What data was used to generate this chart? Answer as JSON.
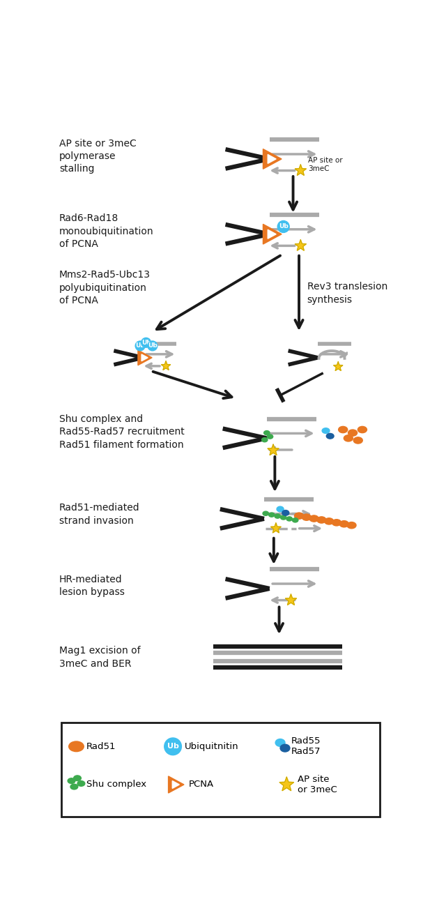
{
  "bg_color": "#ffffff",
  "line_color_black": "#1a1a1a",
  "line_color_gray": "#aaaaaa",
  "orange_color": "#E87722",
  "cyan_color": "#40BFEF",
  "blue_color": "#1A5FA0",
  "green_color": "#3DAA4E",
  "yellow_color": "#F5C518",
  "yellow_stroke": "#ccaa00",
  "labels": {
    "step1": "AP site or 3meC\npolymerase\nstalling",
    "step2": "Rad6-Rad18\nmonoubiquitination\nof PCNA",
    "step3_left": "Mms2-Rad5-Ubc13\npolyubiquitination\nof PCNA",
    "step3_right": "Rev3 translesion\nsynthesis",
    "step4": "Shu complex and\nRad55-Rad57 recruitment\nRad51 filament formation",
    "step5": "Rad51-mediated\nstrand invasion",
    "step6": "HR-mediated\nlesion bypass",
    "step7": "Mag1 excision of\n3meC and BER"
  },
  "legend": {
    "rad51": "Rad51",
    "ub": "Ubiquitnitin",
    "rad5557": "Rad55\nRad57",
    "shu": "Shu complex",
    "pcna": "PCNA",
    "apsite": "AP site\nor 3meC"
  }
}
